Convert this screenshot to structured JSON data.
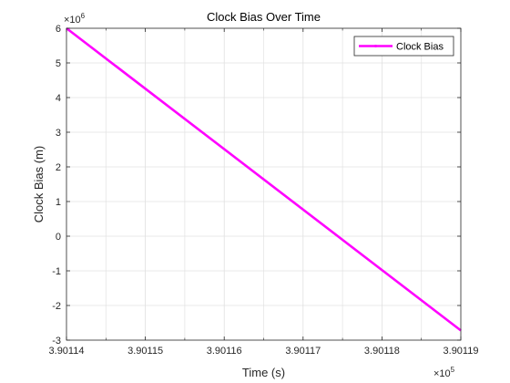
{
  "chart_data": {
    "type": "line",
    "title": "Clock Bias Over Time",
    "xlabel": "Time (s)",
    "ylabel": "Clock Bias (m)",
    "x_multiplier": {
      "base": "×10",
      "exp": "5"
    },
    "y_multiplier": {
      "base": "×10",
      "exp": "6"
    },
    "xlim": [
      3.90114,
      3.90119
    ],
    "ylim": [
      -3,
      6
    ],
    "x_ticks": [
      3.90114,
      3.90115,
      3.90116,
      3.90117,
      3.90118,
      3.90119
    ],
    "x_tick_labels": [
      "3.90114",
      "3.90115",
      "3.90116",
      "3.90117",
      "3.90118",
      "3.90119"
    ],
    "x_minor_ticks": [
      3.901145,
      3.901155,
      3.901165,
      3.901175,
      3.901185
    ],
    "y_ticks": [
      -3,
      -2,
      -1,
      0,
      1,
      2,
      3,
      4,
      5,
      6
    ],
    "y_tick_labels": [
      "-3",
      "-2",
      "-1",
      "0",
      "1",
      "2",
      "3",
      "4",
      "5",
      "6"
    ],
    "grid": true,
    "legend_position": "top-right",
    "series": [
      {
        "name": "Clock Bias",
        "color": "#ff00ff",
        "x": [
          3.90114,
          3.90119
        ],
        "y": [
          6.0,
          -2.72
        ]
      }
    ]
  }
}
